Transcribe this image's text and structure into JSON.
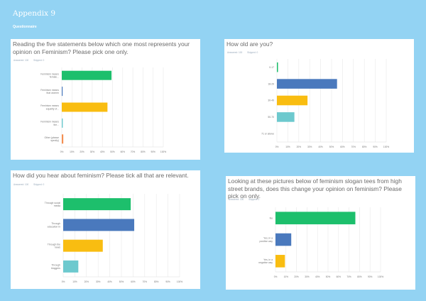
{
  "header": {
    "title": "Appendix 9",
    "subtitle": "Questionnaire"
  },
  "colors": {
    "background": "#93d3f3",
    "green": "#1dbf6c",
    "blue": "#4a79bd",
    "yellow": "#f9bd11",
    "teal": "#6dc9ce",
    "orange": "#f48f52",
    "grid": "#e8e8e8"
  },
  "chart_data": [
    {
      "type": "bar",
      "orientation": "horizontal",
      "title": "Reading the five statements below which one most represents your opinion on Feminism? Please pick one only.",
      "meta": [
        "Answered: 100",
        "Skipped: 0"
      ],
      "categories": [
        "Feminism means female...",
        "Feminism means that women a...",
        "Feminism means equality of...",
        "Feminism means the...",
        "Other (please specify)"
      ],
      "values": [
        49,
        0.5,
        45,
        1,
        1.5
      ],
      "colors": [
        "#1dbf6c",
        "#4a79bd",
        "#f9bd11",
        "#6dc9ce",
        "#f48f52"
      ],
      "xticks": [
        "0%",
        "10%",
        "20%",
        "30%",
        "40%",
        "50%",
        "60%",
        "70%",
        "80%",
        "90%",
        "100%"
      ],
      "xlim": [
        0,
        100
      ],
      "grid": true,
      "xlabel": "",
      "ylabel": ""
    },
    {
      "type": "bar",
      "orientation": "horizontal",
      "title": "How old are you?",
      "meta": [
        "Answered: 100",
        "Skipped: 0"
      ],
      "categories": [
        "0-17",
        "18-29",
        "30-49",
        "50-70",
        "71 or above"
      ],
      "values": [
        1,
        55,
        28,
        16,
        0
      ],
      "colors": [
        "#1dbf6c",
        "#4a79bd",
        "#f9bd11",
        "#6dc9ce",
        "#f48f52"
      ],
      "xticks": [
        "0%",
        "10%",
        "20%",
        "30%",
        "40%",
        "50%",
        "60%",
        "70%",
        "80%",
        "90%",
        "100%"
      ],
      "xlim": [
        0,
        100
      ],
      "grid": true,
      "xlabel": "",
      "ylabel": ""
    },
    {
      "type": "bar",
      "orientation": "horizontal",
      "title": "How did you hear about feminism? Please tick all that are relevant.",
      "meta": [
        "Answered: 100",
        "Skipped: 0"
      ],
      "categories": [
        "Through social media platforms",
        "Through education in s...",
        "Through the news",
        "Through bloggers"
      ],
      "values": [
        58,
        61,
        34,
        13
      ],
      "colors": [
        "#1dbf6c",
        "#4a79bd",
        "#f9bd11",
        "#6dc9ce"
      ],
      "xticks": [
        "0%",
        "10%",
        "20%",
        "30%",
        "40%",
        "50%",
        "60%",
        "70%",
        "80%",
        "90%",
        "100%"
      ],
      "xlim": [
        0,
        100
      ],
      "grid": true,
      "xlabel": "",
      "ylabel": ""
    },
    {
      "type": "bar",
      "orientation": "horizontal",
      "title": "Looking at these pictures below of feminism slogan tees from high street brands, does this change your opinion on feminism? Please pick on only.",
      "meta": [
        "Answered: 100",
        "Skipped: 0"
      ],
      "categories": [
        "No",
        "Yes, in a positive way",
        "Yes, in a negative way"
      ],
      "values": [
        76,
        15,
        9
      ],
      "colors": [
        "#1dbf6c",
        "#4a79bd",
        "#f9bd11"
      ],
      "xticks": [
        "0%",
        "10%",
        "20%",
        "30%",
        "40%",
        "50%",
        "60%",
        "70%",
        "80%",
        "90%",
        "100%"
      ],
      "xlim": [
        0,
        100
      ],
      "grid": true,
      "xlabel": "",
      "ylabel": ""
    }
  ]
}
